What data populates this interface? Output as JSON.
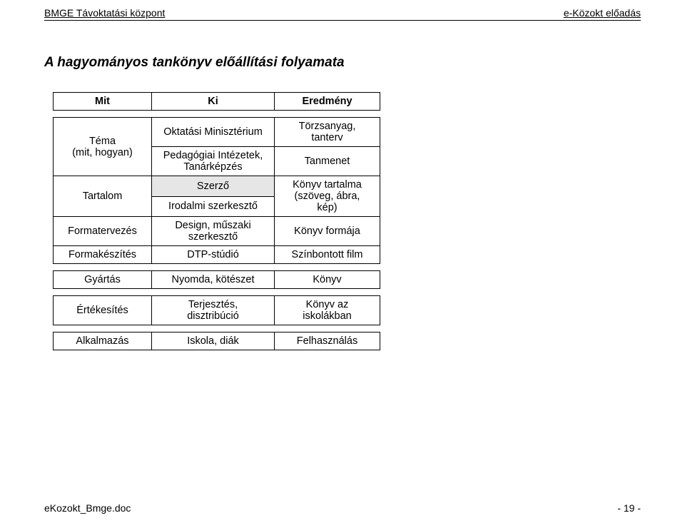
{
  "header": {
    "left": "BMGE Távoktatási központ",
    "right": "e-Közokt előadás"
  },
  "title": "A hagyományos tankönyv előállítási folyamata",
  "table": {
    "head": {
      "c0": "Mit",
      "c1": "Ki",
      "c2": "Eredmény"
    },
    "r1": {
      "c0": "Téma\n(mit, hogyan)",
      "c1a": "Oktatási Minisztérium",
      "c1b": "Pedagógiai Intézetek,\nTanárképzés",
      "c2a": "Törzsanyag,\ntanterv",
      "c2b": "Tanmenet"
    },
    "r2": {
      "c0": "Tartalom",
      "c1a": "Szerző",
      "c1b": "Irodalmi szerkesztő",
      "c2": "Könyv tartalma\n(szöveg, ábra,\nkép)"
    },
    "r3": {
      "c0": "Formatervezés",
      "c1": "Design, műszaki\nszerkesztő",
      "c2": "Könyv formája"
    },
    "r4": {
      "c0": "Formakészítés",
      "c1": "DTP-stúdió",
      "c2": "Színbontott film"
    },
    "r5": {
      "c0": "Gyártás",
      "c1": "Nyomda, kötészet",
      "c2": "Könyv"
    },
    "r6": {
      "c0": "Értékesítés",
      "c1": "Terjesztés,\ndisztribúció",
      "c2": "Könyv az\niskolákban"
    },
    "r7": {
      "c0": "Alkalmazás",
      "c1": "Iskola, diák",
      "c2": "Felhasználás"
    }
  },
  "footer": {
    "left": "eKozokt_Bmge.doc",
    "right": "- 19 -"
  },
  "colors": {
    "shade": "#e6e6e6",
    "border": "#000000",
    "bg": "#ffffff"
  }
}
